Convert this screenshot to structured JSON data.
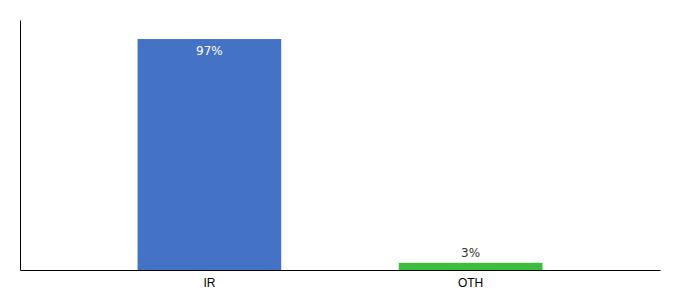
{
  "chart_data": {
    "type": "bar",
    "categories": [
      "IR",
      "OTH"
    ],
    "values": [
      97,
      3
    ],
    "value_labels": [
      "97%",
      "3%"
    ],
    "colors": [
      "#4472c4",
      "#3dbd3d"
    ],
    "ylim": [
      0,
      105
    ],
    "data_labels": true,
    "tick_labels": "x",
    "grid": false
  }
}
